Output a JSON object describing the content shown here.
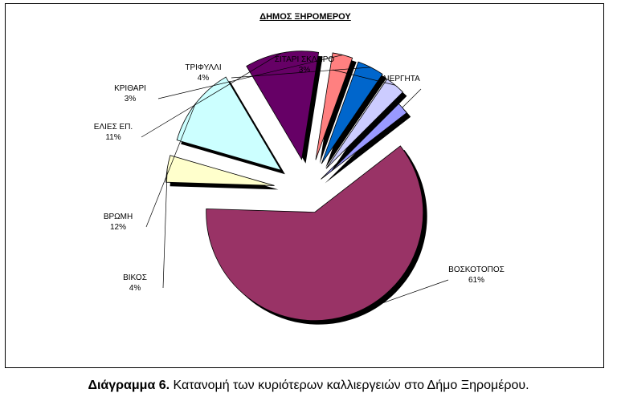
{
  "chart_data": {
    "type": "pie",
    "title": "ΔΗΜΟΣ ΞΗΡΟΜΕΡΟΥ",
    "slices": [
      {
        "label": "ΑΚΑΛΙΕΡΓΗΤΑ",
        "value": 2,
        "percent_label": "2%",
        "color": "#9999ff"
      },
      {
        "label": "ΒΟΣΚΟΤΟΠΟΣ",
        "value": 61,
        "percent_label": "61%",
        "color": "#993366"
      },
      {
        "label": "ΒΙΚΟΣ",
        "value": 4,
        "percent_label": "4%",
        "color": "#ffffcc"
      },
      {
        "label": "ΒΡΩΜΗ",
        "value": 12,
        "percent_label": "12%",
        "color": "#ccffff"
      },
      {
        "label": "ΕΛΙΕΣ ΕΠ.",
        "value": 11,
        "percent_label": "11%",
        "color": "#660066"
      },
      {
        "label": "ΚΡΙΘΑΡΙ",
        "value": 3,
        "percent_label": "3%",
        "color": "#ff8080"
      },
      {
        "label": "ΤΡΙΦΥΛΛΙ",
        "value": 4,
        "percent_label": "4%",
        "color": "#0066cc"
      },
      {
        "label": "ΣΙΤΑΡΙ ΣΚΛΗΡΟ",
        "value": 3,
        "percent_label": "3%",
        "color": "#ccccff"
      }
    ]
  },
  "caption": {
    "prefix": "Διάγραμμα 6.",
    "text": " Κατανομή των κυριότερων καλλιεργειών στο Δήμο Ξηρομέρου."
  }
}
